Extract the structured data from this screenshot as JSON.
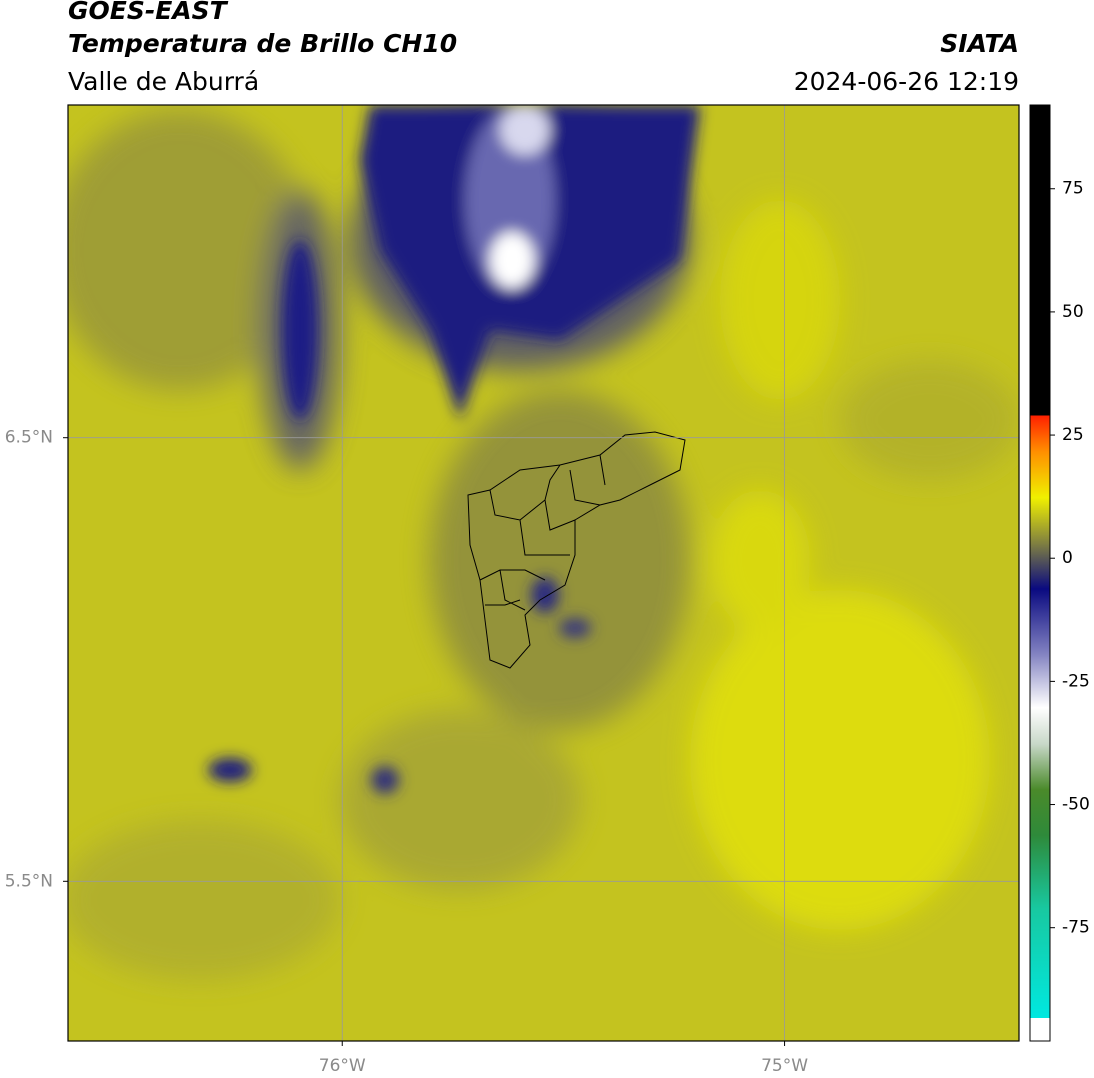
{
  "header": {
    "title": "GOES-EAST",
    "subtitle": "Temperatura de Brillo CH10",
    "region": "Valle de Aburrá",
    "brand": "SIATA",
    "timestamp": "2024-06-26 12:19"
  },
  "map": {
    "xlim": [
      -76.62,
      -74.47
    ],
    "ylim": [
      5.14,
      7.25
    ],
    "grid": true,
    "xticks": [
      {
        "value": -76,
        "label": "76°W"
      },
      {
        "value": -75,
        "label": "75°W"
      }
    ],
    "yticks": [
      {
        "value": 6.5,
        "label": "6.5°N"
      },
      {
        "value": 5.5,
        "label": "5.5°N"
      }
    ]
  },
  "colorbar": {
    "lim": [
      -98,
      92
    ],
    "ticks": [
      75,
      50,
      25,
      0,
      -25,
      -50,
      -75
    ]
  }
}
